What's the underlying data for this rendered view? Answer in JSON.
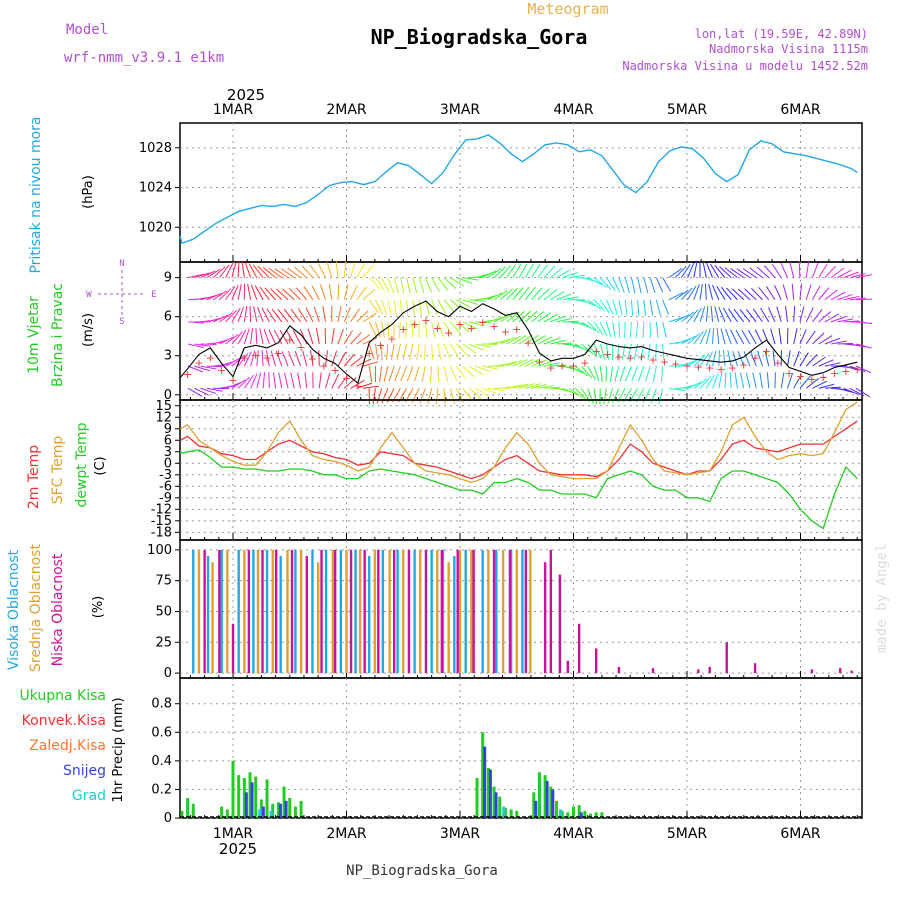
{
  "header": {
    "meteogram_label": "Meteogram",
    "title": "NP_Biogradska_Gora",
    "model_label": "Model",
    "model_value": "wrf-nmm_v3.9.1 e1km",
    "lonlat": "lon,lat (19.59E, 42.89N)",
    "altitude": "Nadmorska Visina 1115m",
    "model_altitude": "Nadmorska Visina u modelu 1452.52m",
    "footer_title": "NP_Biogradska_Gora",
    "watermark": "made by Angel"
  },
  "time_axis": {
    "year": "2025",
    "labels": [
      "1MAR",
      "2MAR",
      "3MAR",
      "4MAR",
      "5MAR",
      "6MAR"
    ],
    "range_days": [
      -0.5,
      5.5
    ]
  },
  "colors": {
    "pressure": "#22a7e6",
    "wind_speed": "#000000",
    "temp_2m": "#ee3333",
    "temp_sfc": "#e0a030",
    "dewpoint": "#22cc22",
    "cloud_high": "#22a7e6",
    "cloud_mid": "#e0a030",
    "cloud_low": "#cc1199",
    "precip_total": "#22cc22",
    "precip_conv": "#ee3333",
    "precip_frozen": "#ff7733",
    "snow": "#3344dd",
    "graupel": "#22cccc",
    "wind_label": "#22cc22",
    "compass": "#aa55cc",
    "purple_text": "#b04fd0",
    "title_orange": "#e8b050"
  },
  "chart_data": [
    {
      "type": "line",
      "panel": "pressure",
      "ylabel": "Pritisak na nivou mora",
      "unit": "(hPa)",
      "yticks": [
        1020,
        1024,
        1028
      ],
      "ylim": [
        1016.5,
        1030.5
      ],
      "series": [
        {
          "name": "Pritisak na nivou mora",
          "x": [
            -0.5,
            -0.45,
            -0.35,
            -0.25,
            -0.15,
            -0.05,
            0.05,
            0.15,
            0.25,
            0.35,
            0.45,
            0.55,
            0.65,
            0.75,
            0.85,
            0.95,
            1.05,
            1.15,
            1.25,
            1.35,
            1.45,
            1.55,
            1.65,
            1.75,
            1.85,
            1.95,
            2.05,
            2.15,
            2.25,
            2.35,
            2.45,
            2.55,
            2.65,
            2.75,
            2.85,
            2.95,
            3.05,
            3.15,
            3.25,
            3.35,
            3.45,
            3.55,
            3.65,
            3.75,
            3.85,
            3.95,
            4.05,
            4.15,
            4.25,
            4.35,
            4.45,
            4.55,
            4.65,
            4.75,
            4.85,
            4.95,
            5.05,
            5.15,
            5.25,
            5.35,
            5.45,
            5.5
          ],
          "values": [
            1019.1,
            1018.4,
            1018.8,
            1019.6,
            1020.4,
            1021.0,
            1021.6,
            1021.9,
            1022.2,
            1022.1,
            1022.3,
            1022.1,
            1022.5,
            1023.3,
            1024.2,
            1024.5,
            1024.6,
            1024.3,
            1024.6,
            1025.6,
            1026.5,
            1026.2,
            1025.3,
            1024.4,
            1025.5,
            1027.3,
            1028.8,
            1028.9,
            1029.3,
            1028.5,
            1027.4,
            1026.6,
            1027.4,
            1028.3,
            1028.5,
            1028.3,
            1027.6,
            1027.8,
            1027.2,
            1025.7,
            1024.2,
            1023.5,
            1024.6,
            1026.6,
            1027.7,
            1028.1,
            1027.9,
            1026.9,
            1025.4,
            1024.6,
            1025.3,
            1027.8,
            1028.7,
            1028.4,
            1027.6,
            1027.4,
            1027.2,
            1026.9,
            1026.6,
            1026.3,
            1025.9,
            1025.5
          ]
        }
      ]
    },
    {
      "type": "line",
      "panel": "wind",
      "ylabel": [
        "10m Vjetar",
        "Brzina i Pravac"
      ],
      "unit": "(m/s)",
      "yticks": [
        0,
        3,
        6,
        9
      ],
      "ylim": [
        -0.4,
        10.2
      ],
      "compass": {
        "n": "N",
        "s": "S",
        "w": "W",
        "e": "E"
      },
      "series": [
        {
          "name": "10m Vjetar",
          "x": [
            -0.5,
            -0.4,
            -0.3,
            -0.2,
            -0.1,
            0.0,
            0.1,
            0.2,
            0.3,
            0.4,
            0.5,
            0.6,
            0.7,
            0.8,
            0.9,
            1.0,
            1.1,
            1.2,
            1.3,
            1.4,
            1.5,
            1.6,
            1.7,
            1.8,
            1.9,
            2.0,
            2.1,
            2.2,
            2.3,
            2.4,
            2.5,
            2.6,
            2.7,
            2.8,
            2.9,
            3.0,
            3.1,
            3.2,
            3.3,
            3.4,
            3.5,
            3.6,
            3.7,
            3.8,
            3.9,
            4.0,
            4.1,
            4.2,
            4.3,
            4.4,
            4.5,
            4.6,
            4.7,
            4.8,
            4.9,
            5.0,
            5.1,
            5.2,
            5.3,
            5.4,
            5.5
          ],
          "values": [
            1.3,
            2.0,
            3.1,
            3.6,
            2.4,
            1.4,
            3.6,
            3.8,
            3.6,
            4.0,
            5.3,
            4.6,
            3.5,
            2.8,
            2.4,
            1.6,
            0.9,
            4.0,
            4.8,
            5.4,
            6.3,
            6.8,
            7.2,
            6.4,
            6.0,
            6.8,
            6.4,
            7.0,
            6.6,
            6.1,
            6.3,
            5.0,
            3.2,
            2.6,
            2.8,
            2.8,
            3.1,
            4.2,
            3.9,
            3.7,
            3.6,
            3.7,
            3.4,
            3.2,
            3.0,
            2.8,
            2.7,
            2.6,
            2.5,
            2.6,
            2.9,
            3.6,
            4.2,
            3.1,
            2.1,
            1.8,
            1.5,
            1.7,
            2.1,
            2.3,
            2.5
          ]
        }
      ]
    },
    {
      "type": "line",
      "panel": "temperature",
      "ylabel": [
        "2m Temp",
        "SFC Temp",
        "dewpt Temp"
      ],
      "unit": "(C)",
      "yticks": [
        15,
        12,
        9,
        6,
        3,
        0,
        -3,
        -6,
        -9,
        -12,
        -15,
        -18
      ],
      "ylim": [
        -20,
        16.5
      ],
      "x": [
        -0.5,
        -0.4,
        -0.3,
        -0.2,
        -0.1,
        0.0,
        0.1,
        0.2,
        0.3,
        0.4,
        0.5,
        0.6,
        0.7,
        0.8,
        0.9,
        1.0,
        1.1,
        1.2,
        1.3,
        1.4,
        1.5,
        1.6,
        1.7,
        1.8,
        1.9,
        2.0,
        2.1,
        2.2,
        2.3,
        2.4,
        2.5,
        2.6,
        2.7,
        2.8,
        2.9,
        3.0,
        3.1,
        3.2,
        3.3,
        3.4,
        3.5,
        3.6,
        3.7,
        3.8,
        3.9,
        4.0,
        4.1,
        4.2,
        4.3,
        4.4,
        4.5,
        4.6,
        4.7,
        4.8,
        4.9,
        5.0,
        5.1,
        5.2,
        5.3,
        5.4,
        5.5
      ],
      "series": [
        {
          "name": "2m Temp",
          "values": [
            6,
            7,
            4.5,
            4,
            2.5,
            2,
            1,
            1,
            3,
            5,
            6,
            4.5,
            3,
            2.5,
            1.5,
            1,
            -0.5,
            0,
            3,
            2.5,
            2,
            0,
            -0.5,
            -1,
            -2,
            -3,
            -4,
            -3,
            -1,
            1,
            2,
            0,
            -2,
            -2.5,
            -3,
            -3,
            -3,
            -3.5,
            -2,
            1,
            5,
            3,
            0,
            -1,
            -2,
            -3,
            -2,
            -2,
            1,
            5,
            6,
            4,
            3.5,
            3,
            4,
            5,
            5,
            5,
            7,
            9,
            11
          ]
        },
        {
          "name": "SFC Temp",
          "values": [
            9,
            10,
            6,
            4,
            2,
            0.5,
            -0.5,
            -0.5,
            3,
            8,
            11,
            6,
            2,
            1,
            0.5,
            -0.5,
            -2,
            -1,
            4,
            8,
            4,
            0,
            -2,
            -2.5,
            -3,
            -4,
            -5,
            -4,
            -1,
            4,
            8,
            5,
            0,
            -3,
            -3.5,
            -4,
            -4,
            -4,
            -2,
            4,
            10,
            6,
            1,
            -2,
            -2.5,
            -3,
            -2.5,
            -2,
            3,
            10,
            12,
            7,
            3,
            1,
            2,
            2.5,
            2,
            2.5,
            8,
            14,
            16
          ]
        },
        {
          "name": "dewpt Temp",
          "values": [
            2.5,
            3,
            3.5,
            1.5,
            -1,
            -1,
            -1.5,
            -1.5,
            -2,
            -2,
            -1.5,
            -1.5,
            -2,
            -3,
            -3,
            -4,
            -4,
            -2,
            -1.5,
            -2,
            -2.5,
            -3,
            -4,
            -5,
            -6,
            -7,
            -7,
            -8,
            -5,
            -5,
            -4,
            -5,
            -7,
            -7,
            -8,
            -8,
            -8,
            -9,
            -4,
            -3,
            -2,
            -3,
            -6,
            -7,
            -7,
            -9,
            -9,
            -10,
            -4,
            -2,
            -2,
            -3,
            -4,
            -5,
            -8,
            -12,
            -15,
            -17,
            -8,
            -1,
            -4
          ]
        }
      ]
    },
    {
      "type": "bar",
      "panel": "cloud",
      "ylabel": [
        "Visoka Oblacnost",
        "Srednja Oblacnost",
        "Niska Oblacnost"
      ],
      "unit": "(%)",
      "yticks": [
        0,
        25,
        50,
        75,
        100
      ],
      "ylim": [
        -4,
        108
      ],
      "series": [
        {
          "name": "Visoka Oblacnost",
          "x": [
            -0.35,
            -0.22,
            -0.1,
            0.05,
            0.18,
            0.3,
            0.42,
            0.55,
            0.7,
            0.82,
            0.95,
            1.08,
            1.2,
            1.32,
            1.45,
            1.6,
            1.75,
            1.85,
            1.95,
            2.05,
            2.2,
            2.32,
            2.45,
            2.55
          ],
          "values": [
            100,
            95,
            100,
            100,
            100,
            100,
            95,
            100,
            100,
            100,
            100,
            100,
            95,
            100,
            100,
            100,
            100,
            100,
            95,
            100,
            100,
            100,
            100,
            100
          ]
        },
        {
          "name": "Srednja Oblacnost",
          "x": [
            -0.3,
            -0.18,
            -0.05,
            0.1,
            0.22,
            0.35,
            0.48,
            0.6,
            0.75,
            0.88,
            1.0,
            1.12,
            1.25,
            1.38,
            1.5,
            1.65,
            1.8,
            1.9,
            2.0,
            2.1,
            2.25,
            2.38,
            2.5,
            2.62
          ],
          "values": [
            100,
            90,
            100,
            100,
            100,
            100,
            100,
            100,
            90,
            100,
            100,
            100,
            100,
            100,
            100,
            100,
            100,
            90,
            100,
            100,
            100,
            100,
            100,
            100
          ]
        },
        {
          "name": "Niska Oblacnost",
          "x": [
            -0.25,
            -0.12,
            0.0,
            0.14,
            0.26,
            0.38,
            0.52,
            0.65,
            0.78,
            0.9,
            1.04,
            1.16,
            1.28,
            1.42,
            1.55,
            1.7,
            1.84,
            1.98,
            2.12,
            2.3,
            2.44,
            2.58,
            2.75,
            2.8,
            2.88,
            2.95,
            3.05,
            3.2,
            3.4,
            3.7,
            4.1,
            4.2,
            4.35,
            4.6,
            5.1,
            5.35,
            5.45
          ],
          "values": [
            100,
            100,
            40,
            100,
            100,
            100,
            100,
            95,
            100,
            100,
            100,
            100,
            100,
            100,
            100,
            100,
            100,
            100,
            100,
            100,
            100,
            100,
            90,
            100,
            80,
            10,
            40,
            20,
            5,
            4,
            3,
            5,
            25,
            8,
            3,
            4,
            2
          ]
        }
      ]
    },
    {
      "type": "bar",
      "panel": "precipitation",
      "ylabel": [
        "Ukupna Kisa",
        "Konvek.Kisa",
        "Zaledj.Kisa",
        "Snijeg",
        "Grad",
        "1hr Precip (mm)"
      ],
      "unit": "1hr Precip (mm)",
      "yticks": [
        0,
        0.2,
        0.4,
        0.6,
        0.8
      ],
      "ylim": [
        0,
        0.98
      ],
      "series": [
        {
          "name": "Ukupna Kisa",
          "x": [
            -0.45,
            -0.4,
            -0.35,
            -0.1,
            -0.05,
            0.0,
            0.05,
            0.1,
            0.15,
            0.2,
            0.25,
            0.3,
            0.35,
            0.4,
            0.45,
            0.5,
            0.55,
            0.6,
            2.15,
            2.2,
            2.25,
            2.3,
            2.35,
            2.4,
            2.45,
            2.5,
            2.65,
            2.7,
            2.75,
            2.8,
            2.85,
            2.9,
            2.95,
            3.0,
            3.05,
            3.1,
            3.15,
            3.2,
            3.25
          ],
          "values": [
            0.05,
            0.14,
            0.1,
            0.08,
            0.06,
            0.4,
            0.3,
            0.28,
            0.32,
            0.29,
            0.13,
            0.27,
            0.1,
            0.11,
            0.22,
            0.14,
            0.08,
            0.12,
            0.28,
            0.6,
            0.35,
            0.22,
            0.15,
            0.07,
            0.06,
            0.05,
            0.18,
            0.32,
            0.3,
            0.22,
            0.12,
            0.05,
            0.04,
            0.08,
            0.09,
            0.05,
            0.03,
            0.04,
            0.04
          ]
        },
        {
          "name": "Snijeg",
          "x": [
            0.1,
            0.15,
            0.25,
            0.4,
            0.45,
            2.2,
            2.25,
            2.3,
            2.65,
            2.75,
            2.8,
            3.05
          ],
          "values": [
            0.18,
            0.25,
            0.08,
            0.1,
            0.12,
            0.5,
            0.34,
            0.18,
            0.12,
            0.26,
            0.2,
            0.04
          ]
        },
        {
          "name": "Grad",
          "x": [
            0.2,
            0.3,
            2.35,
            2.85
          ],
          "values": [
            0.06,
            0.05,
            0.08,
            0.06
          ]
        }
      ]
    }
  ]
}
